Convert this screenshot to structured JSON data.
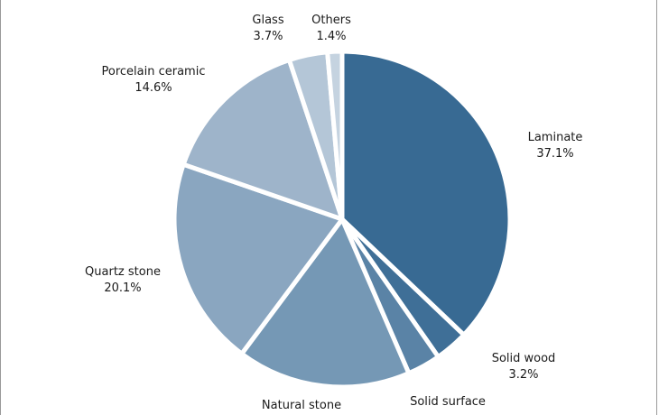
{
  "chart_data": {
    "type": "pie",
    "slices": [
      {
        "label": "Laminate",
        "value": 37.1,
        "value_label": "37.1%",
        "color": "#386a93"
      },
      {
        "label": "Solid wood",
        "value": 3.2,
        "value_label": "3.2%",
        "color": "#3f6f97"
      },
      {
        "label": "Solid surface",
        "value": 3.2,
        "value_label": "",
        "color": "#5a83a6"
      },
      {
        "label": "Natural stone",
        "value": 16.7,
        "value_label": "",
        "color": "#7598b5"
      },
      {
        "label": "Quartz stone",
        "value": 20.1,
        "value_label": "20.1%",
        "color": "#8aa6c0"
      },
      {
        "label": "Porcelain ceramic",
        "value": 14.6,
        "value_label": "14.6%",
        "color": "#9eb4ca"
      },
      {
        "label": "Glass",
        "value": 3.7,
        "value_label": "3.7%",
        "color": "#b4c6d7"
      },
      {
        "label": "Others",
        "value": 1.4,
        "value_label": "1.4%",
        "color": "#c5d3e0"
      }
    ],
    "legend": "none"
  }
}
